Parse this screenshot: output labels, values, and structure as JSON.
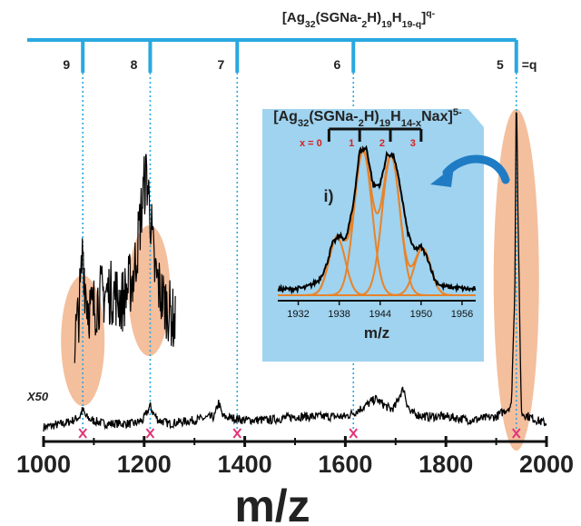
{
  "colors": {
    "ladder": "#29a8e0",
    "ladder_drop": "#29a8e0",
    "highlight": "#f2b48c",
    "marker": "#e0367a",
    "spectrum": "#000000",
    "inset_bg": "#9fd3ef",
    "fit": "#e8832a",
    "inset_ticks": "#d62020",
    "arrow": "#1f7cc4",
    "text": "#222222"
  },
  "chart_data": [
    {
      "type": "line",
      "title": "",
      "xlabel": "m/z",
      "ylabel": "",
      "xlim": [
        1000,
        2000
      ],
      "x_ticks": [
        1000,
        1200,
        1400,
        1600,
        1800,
        2000
      ],
      "grid": false,
      "ladder_label": "[Ag32(SGNa-2H)19H19-q]q-",
      "ladder": [
        {
          "q": "9",
          "mz": 1078
        },
        {
          "q": "8",
          "mz": 1212
        },
        {
          "q": "7",
          "mz": 1385
        },
        {
          "q": "6",
          "mz": 1616
        },
        {
          "q": "5",
          "mz": 1940
        }
      ],
      "ladder_suffix": "=q",
      "magnified_label": "X50",
      "series": [
        {
          "role": "spectrum",
          "x": [
            1000,
            1040,
            1060,
            1072,
            1078,
            1084,
            1095,
            1120,
            1150,
            1180,
            1198,
            1205,
            1212,
            1218,
            1228,
            1250,
            1300,
            1340,
            1348,
            1356,
            1400,
            1450,
            1500,
            1560,
            1600,
            1616,
            1640,
            1660,
            1690,
            1700,
            1708,
            1716,
            1722,
            1730,
            1760,
            1800,
            1850,
            1900,
            1930,
            1937,
            1940,
            1944,
            1950,
            1980,
            2000
          ],
          "y": [
            0.02,
            0.03,
            0.04,
            0.05,
            0.07,
            0.05,
            0.04,
            0.03,
            0.03,
            0.03,
            0.04,
            0.06,
            0.08,
            0.06,
            0.04,
            0.03,
            0.04,
            0.05,
            0.09,
            0.05,
            0.04,
            0.04,
            0.05,
            0.05,
            0.05,
            0.06,
            0.08,
            0.1,
            0.07,
            0.08,
            0.11,
            0.13,
            0.09,
            0.06,
            0.05,
            0.05,
            0.04,
            0.05,
            0.08,
            0.4,
            1.0,
            0.55,
            0.06,
            0.04,
            0.03
          ]
        },
        {
          "role": "magnified",
          "x": [
            1062,
            1068,
            1074,
            1078,
            1082,
            1088,
            1096,
            1110,
            1125,
            1140,
            1155,
            1168,
            1180,
            1192,
            1200,
            1205,
            1208,
            1212,
            1216,
            1220,
            1226,
            1235,
            1245,
            1255,
            1262
          ],
          "y": [
            0.3,
            0.38,
            0.52,
            0.7,
            0.55,
            0.45,
            0.42,
            0.48,
            0.5,
            0.5,
            0.46,
            0.52,
            0.58,
            0.8,
            0.95,
            1.0,
            0.93,
            0.85,
            0.72,
            0.6,
            0.55,
            0.48,
            0.44,
            0.4,
            0.36
          ]
        }
      ]
    },
    {
      "type": "line",
      "title": "[Ag32(SGNa-2H)19H14-xNax]5-",
      "panel_label": "i)",
      "xlabel": "m/z",
      "ylabel": "",
      "xlim": [
        1929,
        1958
      ],
      "x_ticks": [
        1932,
        1938,
        1944,
        1950,
        1956
      ],
      "grid": false,
      "x_index_label": "x = 0",
      "x_index": [
        {
          "x": "0",
          "mz": 1936.5
        },
        {
          "x": "1",
          "mz": 1941.0
        },
        {
          "x": "2",
          "mz": 1945.5
        },
        {
          "x": "3",
          "mz": 1950.0
        }
      ],
      "series": [
        {
          "role": "measured",
          "x": [
            1929,
            1931,
            1933,
            1934,
            1935,
            1936,
            1937,
            1938,
            1939,
            1940,
            1941,
            1942,
            1943,
            1944,
            1945,
            1946,
            1947,
            1948,
            1949,
            1950,
            1951,
            1952,
            1953,
            1955,
            1957
          ],
          "y": [
            0.04,
            0.04,
            0.05,
            0.07,
            0.1,
            0.18,
            0.34,
            0.39,
            0.37,
            0.58,
            0.95,
            0.97,
            0.72,
            0.73,
            0.93,
            0.92,
            0.7,
            0.42,
            0.3,
            0.32,
            0.24,
            0.1,
            0.06,
            0.05,
            0.04
          ]
        },
        {
          "role": "fit",
          "peaks": [
            {
              "center": 1937.7,
              "height": 0.38,
              "sigma": 1.2
            },
            {
              "center": 1941.5,
              "height": 0.95,
              "sigma": 1.3
            },
            {
              "center": 1945.6,
              "height": 0.92,
              "sigma": 1.3
            },
            {
              "center": 1950.2,
              "height": 0.31,
              "sigma": 1.2
            }
          ]
        }
      ]
    }
  ]
}
